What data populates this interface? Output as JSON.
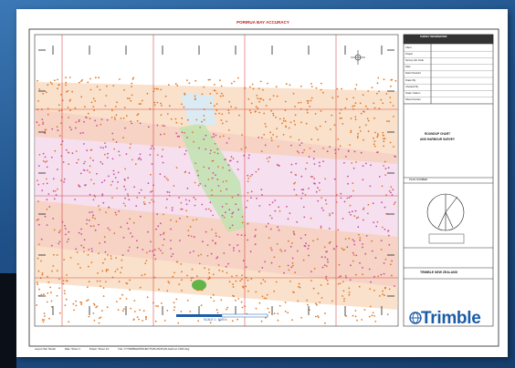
{
  "sheet": {
    "header_text": "PORIRUA BAY ACCURACY",
    "title_block": {
      "heading": "SURVEY INFORMATION",
      "field_labels": [
        "Client",
        "Project",
        "Survey Job Code",
        "Date",
        "Field Checked",
        "Drawn By",
        "Checked By",
        "Scale / Datum",
        "Sheet Number"
      ],
      "plan_title_line1": "ROUNDUP CHART",
      "plan_title_line2": "AND HARBOUR SURVEY",
      "plan_no_label": "PLAN NUMBER",
      "company_name": "TRIMBLE NEW ZEALAND"
    },
    "scale_bar_label": "SCALE  1 : 1000",
    "footer_items": [
      "Layout Tab: Model",
      "Date: Sheet 1",
      "Drawn: Sheet 1/1",
      "File: C:\\TRIMBLE\\PROJECTS\\PLAN\\PLAN-Harbour-1000.dwg"
    ]
  },
  "brand": {
    "logo_text": "Trimble",
    "logo_color": "#1c5ca8"
  },
  "colors": {
    "background": "#1e4f86",
    "map_orange": "#e07a2a",
    "map_magenta": "#c94fa0",
    "map_green": "#5fb54a",
    "grid_red": "#d43a3a"
  }
}
